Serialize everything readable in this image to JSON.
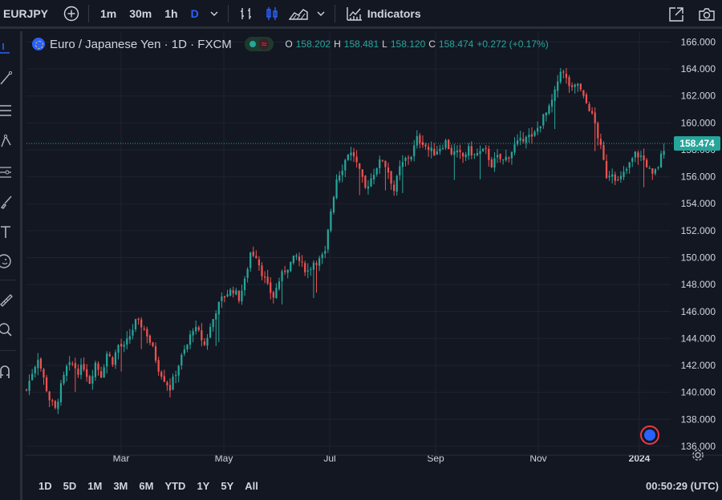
{
  "topbar": {
    "symbol": "EURJPY",
    "intervals": [
      "1m",
      "30m",
      "1h",
      "D"
    ],
    "active_interval": "D",
    "indicators_label": "Indicators"
  },
  "legend": {
    "title": "Euro / Japanese Yen · 1D · FXCM",
    "open_label": "O",
    "open": "158.202",
    "high_label": "H",
    "high": "158.481",
    "low_label": "L",
    "low": "158.120",
    "close_label": "C",
    "close": "158.474",
    "change": "+0.272 (+0.17%)"
  },
  "colors": {
    "up": "#26a69a",
    "down": "#ef5350",
    "accent": "#2962ff",
    "bg": "#131722",
    "grid": "#1f2330"
  },
  "price_axis": {
    "labels": [
      "166.000",
      "164.000",
      "162.000",
      "160.000",
      "158.000",
      "156.000",
      "154.000",
      "152.000",
      "150.000",
      "148.000",
      "146.000",
      "144.000",
      "142.000",
      "140.000",
      "138.000",
      "136.000"
    ],
    "last_price": "158.474"
  },
  "time_axis": {
    "labels": [
      "Mar",
      "May",
      "Jul",
      "Sep",
      "Nov",
      "2024"
    ]
  },
  "ranges": [
    "1D",
    "5D",
    "1M",
    "3M",
    "6M",
    "YTD",
    "1Y",
    "5Y",
    "All"
  ],
  "clock": "00:50:29 (UTC)",
  "chart_data": {
    "type": "candlestick",
    "ylim": [
      135.4,
      166.8
    ],
    "last_price": 158.474,
    "x_ticks": [
      "Mar",
      "May",
      "Jul",
      "Sep",
      "Nov",
      "2024"
    ],
    "close_path": [
      [
        0,
        140.2
      ],
      [
        3,
        141.5
      ],
      [
        6,
        142.6
      ],
      [
        9,
        141.0
      ],
      [
        12,
        139.5
      ],
      [
        15,
        138.7
      ],
      [
        18,
        140.4
      ],
      [
        21,
        141.8
      ],
      [
        24,
        142.1
      ],
      [
        27,
        141.6
      ],
      [
        30,
        141.9
      ],
      [
        33,
        140.8
      ],
      [
        36,
        142.2
      ],
      [
        39,
        141.3
      ],
      [
        42,
        142.9
      ],
      [
        45,
        142.3
      ],
      [
        48,
        143.5
      ],
      [
        51,
        143.3
      ],
      [
        54,
        144.2
      ],
      [
        57,
        145.2
      ],
      [
        60,
        145.0
      ],
      [
        63,
        144.3
      ],
      [
        66,
        143.2
      ],
      [
        69,
        141.8
      ],
      [
        72,
        141.0
      ],
      [
        75,
        140.3
      ],
      [
        78,
        141.5
      ],
      [
        81,
        142.6
      ],
      [
        84,
        143.5
      ],
      [
        87,
        144.8
      ],
      [
        90,
        144.4
      ],
      [
        93,
        143.5
      ],
      [
        96,
        144.8
      ],
      [
        99,
        146.1
      ],
      [
        102,
        146.9
      ],
      [
        105,
        147.4
      ],
      [
        108,
        147.6
      ],
      [
        111,
        147.0
      ],
      [
        114,
        148.2
      ],
      [
        117,
        150.4
      ],
      [
        120,
        150.2
      ],
      [
        123,
        148.9
      ],
      [
        126,
        147.8
      ],
      [
        129,
        147.1
      ],
      [
        132,
        148.3
      ],
      [
        135,
        149.1
      ],
      [
        138,
        149.6
      ],
      [
        141,
        150.1
      ],
      [
        144,
        149.4
      ],
      [
        147,
        149.0
      ],
      [
        150,
        149.7
      ],
      [
        153,
        149.8
      ],
      [
        156,
        150.3
      ],
      [
        159,
        153.5
      ],
      [
        162,
        155.9
      ],
      [
        165,
        156.7
      ],
      [
        168,
        157.8
      ],
      [
        171,
        157.6
      ],
      [
        174,
        156.3
      ],
      [
        177,
        155.1
      ],
      [
        180,
        155.9
      ],
      [
        183,
        156.8
      ],
      [
        186,
        157.3
      ],
      [
        189,
        156.4
      ],
      [
        192,
        155.0
      ],
      [
        195,
        156.6
      ],
      [
        198,
        157.3
      ],
      [
        201,
        157.6
      ],
      [
        204,
        158.8
      ],
      [
        207,
        158.6
      ],
      [
        210,
        158.0
      ],
      [
        213,
        157.8
      ],
      [
        216,
        158.2
      ],
      [
        219,
        158.6
      ],
      [
        222,
        157.8
      ],
      [
        225,
        157.7
      ],
      [
        228,
        157.5
      ],
      [
        231,
        158.0
      ],
      [
        234,
        157.6
      ],
      [
        237,
        157.8
      ],
      [
        240,
        157.9
      ],
      [
        243,
        156.9
      ],
      [
        246,
        157.4
      ],
      [
        249,
        157.2
      ],
      [
        252,
        157.6
      ],
      [
        255,
        158.3
      ],
      [
        258,
        158.6
      ],
      [
        261,
        159.2
      ],
      [
        264,
        158.8
      ],
      [
        267,
        159.6
      ],
      [
        270,
        160.4
      ],
      [
        273,
        161.0
      ],
      [
        276,
        162.2
      ],
      [
        279,
        164.0
      ],
      [
        282,
        163.2
      ],
      [
        285,
        162.4
      ],
      [
        288,
        162.9
      ],
      [
        291,
        161.8
      ],
      [
        294,
        161.1
      ],
      [
        297,
        159.9
      ],
      [
        300,
        158.1
      ],
      [
        303,
        156.1
      ],
      [
        306,
        156.4
      ],
      [
        309,
        155.6
      ],
      [
        312,
        156.2
      ],
      [
        315,
        156.9
      ],
      [
        318,
        157.7
      ],
      [
        321,
        157.5
      ],
      [
        324,
        156.9
      ],
      [
        327,
        156.0
      ],
      [
        330,
        156.8
      ],
      [
        333,
        158.2
      ],
      [
        334,
        158.474
      ]
    ],
    "x_domain": [
      0,
      334
    ]
  }
}
